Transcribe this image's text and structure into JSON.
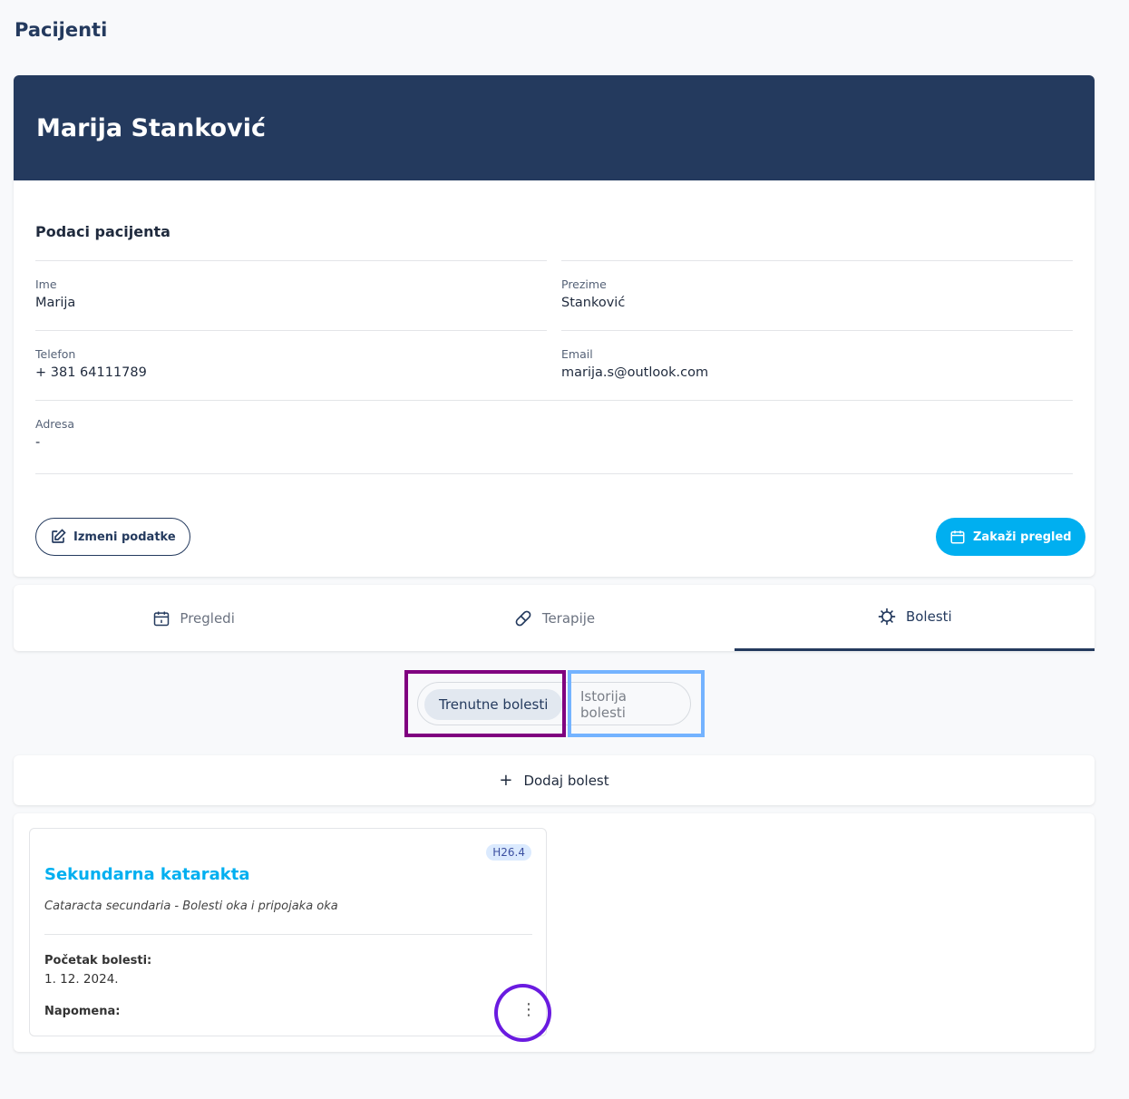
{
  "page": {
    "title": "Pacijenti"
  },
  "patient": {
    "name": "Marija Stanković",
    "section_title": "Podaci pacijenta",
    "fields": [
      {
        "label": "Ime",
        "value": "Marija"
      },
      {
        "label": "Prezime",
        "value": "Stanković"
      },
      {
        "label": "Telefon",
        "value": "+ 381 64111789"
      },
      {
        "label": "Email",
        "value": "marija.s@outlook.com"
      },
      {
        "label": "Adresa",
        "value": "-"
      }
    ],
    "edit_label": "Izmeni podatke",
    "schedule_label": "Zakaži pregled"
  },
  "tabs": [
    {
      "label": "Pregledi",
      "icon": "calendar-icon"
    },
    {
      "label": "Terapije",
      "icon": "pill-icon"
    },
    {
      "label": "Bolesti",
      "icon": "virus-icon",
      "active": true
    }
  ],
  "filters": {
    "current": "Trenutne bolesti",
    "history": "Istorija bolesti",
    "selected": "Trenutne bolesti"
  },
  "add_label": "Dodaj bolest",
  "diseases": [
    {
      "code": "H26.4",
      "name": "Sekundarna katarakta",
      "description": "Cataracta secundaria - Bolesti oka i pripojaka oka",
      "start_label": "Početak bolesti:",
      "start_value": "1. 12. 2024.",
      "note_label": "Napomena:"
    }
  ],
  "colors": {
    "primary": "#243a5e",
    "accent": "#00aff0",
    "annotation_purple": "#800080",
    "annotation_blue": "#74b3ff",
    "annotation_circle": "#6a1be0"
  }
}
